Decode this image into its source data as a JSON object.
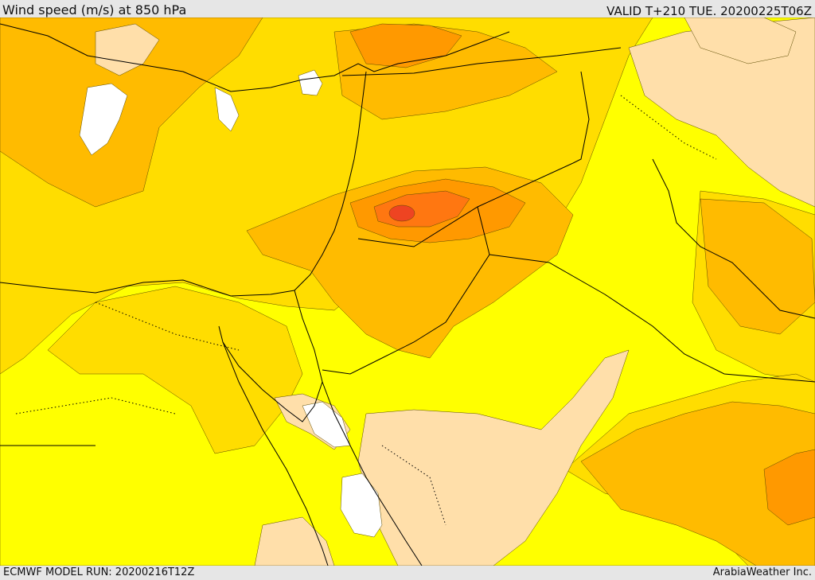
{
  "header": {
    "title": "Wind speed (m/s) at 850 hPa",
    "valid": "VALID T+210 TUE. 20200225T06Z"
  },
  "footer": {
    "model_run": "ECMWF MODEL RUN: 20200216T12Z",
    "credit": "ArabiaWeather Inc."
  },
  "palette": {
    "calm": "#ffffff",
    "low": "#ffdfaa",
    "base": "#ffff00",
    "moderate": "#ffdd00",
    "fresh": "#ffbb00",
    "strong": "#ff9900",
    "very_strong": "#ff7711",
    "max": "#ee4422",
    "boundary": "#000000"
  }
}
